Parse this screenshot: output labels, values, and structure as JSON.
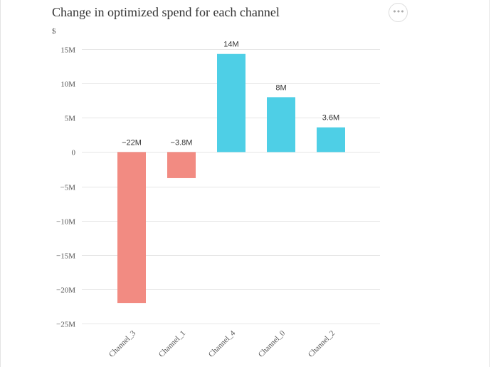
{
  "chart_data": {
    "type": "bar",
    "title": "Change in optimized spend for each channel",
    "ylabel": "$",
    "xlabel": "",
    "categories": [
      "Channel_3",
      "Channel_1",
      "Channel_4",
      "Channel_0",
      "Channel_2"
    ],
    "values": [
      -22000000,
      -3800000,
      14300000,
      8000000,
      3600000
    ],
    "data_labels": [
      "−22M",
      "−3.8M",
      "14M",
      "8M",
      "3.6M"
    ],
    "ylim": [
      -25000000,
      15000000
    ],
    "yticks": [
      15000000,
      10000000,
      5000000,
      0,
      -5000000,
      -10000000,
      -15000000,
      -20000000,
      -25000000
    ],
    "ytick_labels": [
      "15M",
      "10M",
      "5M",
      "0",
      "−5M",
      "−10M",
      "−15M",
      "−20M",
      "−25M"
    ],
    "colors": {
      "positive": "#4ecfe6",
      "negative": "#f28b82",
      "grid": "#e6e6e6"
    },
    "grid": true,
    "legend": "none"
  },
  "menu": {
    "icon": "more-horizontal-icon",
    "glyph": "•••"
  }
}
